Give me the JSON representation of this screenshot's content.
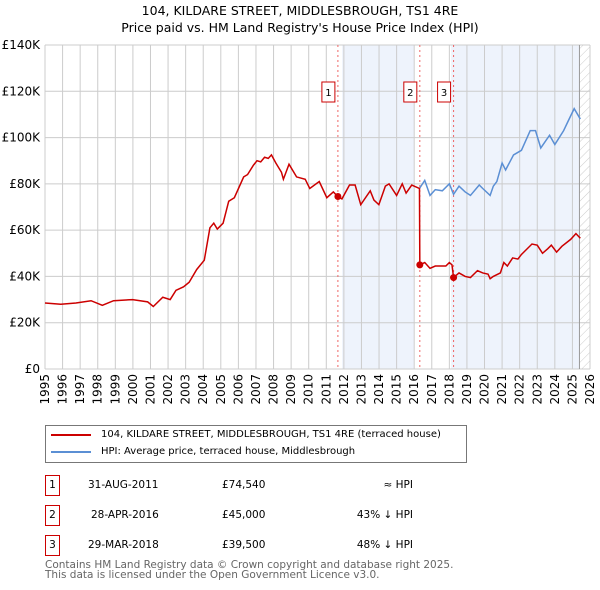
{
  "chart_data": {
    "type": "line",
    "title": "104, KILDARE STREET, MIDDLESBROUGH, TS1 4RE",
    "subtitle": "Price paid vs. HM Land Registry's House Price Index (HPI)",
    "xlim": [
      1995,
      2026
    ],
    "ylim": [
      0,
      140000
    ],
    "x_ticks": [
      "1995",
      "1996",
      "1997",
      "1998",
      "1999",
      "2000",
      "2001",
      "2002",
      "2003",
      "2004",
      "2005",
      "2006",
      "2007",
      "2008",
      "2009",
      "2010",
      "2011",
      "2012",
      "2013",
      "2014",
      "2015",
      "2016",
      "2017",
      "2018",
      "2019",
      "2020",
      "2021",
      "2022",
      "2023",
      "2024",
      "2025",
      "2026"
    ],
    "y_ticks": [
      {
        "v": 0,
        "label": "£0"
      },
      {
        "v": 20000,
        "label": "£20K"
      },
      {
        "v": 40000,
        "label": "£40K"
      },
      {
        "v": 60000,
        "label": "£60K"
      },
      {
        "v": 80000,
        "label": "£80K"
      },
      {
        "v": 100000,
        "label": "£100K"
      },
      {
        "v": 120000,
        "label": "£120K"
      },
      {
        "v": 140000,
        "label": "£140K"
      }
    ],
    "grid": true,
    "series": [
      {
        "name": "104, KILDARE STREET, MIDDLESBROUGH, TS1 4RE (terraced house)",
        "color": "#cc0000",
        "points": [
          [
            1995,
            28500
          ],
          [
            1995.9,
            28000
          ],
          [
            1996.76,
            28500
          ],
          [
            1997.62,
            29500
          ],
          [
            1998.26,
            27500
          ],
          [
            1998.9,
            29500
          ],
          [
            1999.98,
            30000
          ],
          [
            2000.84,
            29000
          ],
          [
            2001.16,
            27000
          ],
          [
            2001.7,
            31000
          ],
          [
            2002.12,
            30000
          ],
          [
            2002.45,
            34000
          ],
          [
            2002.88,
            35500
          ],
          [
            2003.2,
            37500
          ],
          [
            2003.63,
            43000
          ],
          [
            2004.06,
            47000
          ],
          [
            2004.38,
            61000
          ],
          [
            2004.6,
            63000
          ],
          [
            2004.8,
            60500
          ],
          [
            2005.13,
            63000
          ],
          [
            2005.45,
            72500
          ],
          [
            2005.77,
            74000
          ],
          [
            2006.3,
            83000
          ],
          [
            2006.52,
            84000
          ],
          [
            2006.85,
            88000
          ],
          [
            2007.06,
            90000
          ],
          [
            2007.27,
            89500
          ],
          [
            2007.49,
            91500
          ],
          [
            2007.7,
            91000
          ],
          [
            2007.88,
            92500
          ],
          [
            2008.13,
            89000
          ],
          [
            2008.45,
            85000
          ],
          [
            2008.56,
            82000
          ],
          [
            2008.88,
            88500
          ],
          [
            2009.31,
            83000
          ],
          [
            2009.8,
            82000
          ],
          [
            2010.06,
            78000
          ],
          [
            2010.6,
            81000
          ],
          [
            2011.03,
            74000
          ],
          [
            2011.4,
            76500
          ],
          [
            2011.66,
            74540
          ],
          [
            2011.89,
            73500
          ],
          [
            2012.32,
            79500
          ],
          [
            2012.64,
            79500
          ],
          [
            2012.96,
            71000
          ],
          [
            2013.5,
            77000
          ],
          [
            2013.71,
            73000
          ],
          [
            2013.99,
            71000
          ],
          [
            2014.36,
            79000
          ],
          [
            2014.57,
            80000
          ],
          [
            2015.0,
            75000
          ],
          [
            2015.32,
            80000
          ],
          [
            2015.54,
            76000
          ],
          [
            2015.86,
            79500
          ],
          [
            2016.3,
            78000
          ],
          [
            2016.32,
            45000
          ],
          [
            2016.6,
            46000
          ],
          [
            2016.9,
            43500
          ],
          [
            2017.2,
            44500
          ],
          [
            2017.8,
            44500
          ],
          [
            2018.0,
            46000
          ],
          [
            2018.15,
            45000
          ],
          [
            2018.24,
            39500
          ],
          [
            2018.55,
            41500
          ],
          [
            2018.9,
            40000
          ],
          [
            2019.2,
            39500
          ],
          [
            2019.6,
            42500
          ],
          [
            2019.9,
            41500
          ],
          [
            2020.2,
            41000
          ],
          [
            2020.32,
            39000
          ],
          [
            2020.5,
            40000
          ],
          [
            2020.9,
            41500
          ],
          [
            2021.1,
            46000
          ],
          [
            2021.3,
            44500
          ],
          [
            2021.6,
            48000
          ],
          [
            2021.9,
            47500
          ],
          [
            2022.1,
            49500
          ],
          [
            2022.7,
            54000
          ],
          [
            2023.0,
            53500
          ],
          [
            2023.3,
            50000
          ],
          [
            2023.6,
            52000
          ],
          [
            2023.8,
            53500
          ],
          [
            2024.1,
            50500
          ],
          [
            2024.4,
            53000
          ],
          [
            2024.9,
            56000
          ],
          [
            2025.2,
            58500
          ],
          [
            2025.45,
            56500
          ]
        ]
      },
      {
        "name": "HPI: Average price, terraced house, Middlesbrough",
        "color": "#5b8fd4",
        "points": [
          [
            2016.3,
            78000
          ],
          [
            2016.6,
            81500
          ],
          [
            2016.9,
            75000
          ],
          [
            2017.2,
            77500
          ],
          [
            2017.6,
            77000
          ],
          [
            2018.0,
            80000
          ],
          [
            2018.24,
            75500
          ],
          [
            2018.55,
            79000
          ],
          [
            2018.9,
            76500
          ],
          [
            2019.2,
            75000
          ],
          [
            2019.7,
            79500
          ],
          [
            2019.9,
            78000
          ],
          [
            2020.32,
            75000
          ],
          [
            2020.5,
            79000
          ],
          [
            2020.7,
            81000
          ],
          [
            2021.0,
            89000
          ],
          [
            2021.2,
            86000
          ],
          [
            2021.65,
            92500
          ],
          [
            2022.1,
            94500
          ],
          [
            2022.6,
            103000
          ],
          [
            2022.9,
            103000
          ],
          [
            2023.2,
            95500
          ],
          [
            2023.7,
            101000
          ],
          [
            2024.0,
            97000
          ],
          [
            2024.5,
            103000
          ],
          [
            2024.75,
            107000
          ],
          [
            2025.1,
            112500
          ],
          [
            2025.45,
            108000
          ]
        ]
      }
    ],
    "shaded_ranges": [
      [
        2011.9,
        2016.0
      ],
      [
        2018.1,
        2025.4
      ]
    ],
    "hatched_from": 2025.4,
    "markers": [
      {
        "label": "1",
        "x": 2011.66,
        "y": 74540
      },
      {
        "label": "2",
        "x": 2016.32,
        "y": 45000
      },
      {
        "label": "3",
        "x": 2018.24,
        "y": 39500
      }
    ],
    "legend_position": "below"
  },
  "legend": {
    "property": "104, KILDARE STREET, MIDDLESBROUGH, TS1 4RE (terraced house)",
    "hpi": "HPI: Average price, terraced house, Middlesbrough"
  },
  "sales": [
    {
      "num": "1",
      "date": "31-AUG-2011",
      "price": "£74,540",
      "hpi": "≈ HPI"
    },
    {
      "num": "2",
      "date": "28-APR-2016",
      "price": "£45,000",
      "hpi": "43% ↓ HPI"
    },
    {
      "num": "3",
      "date": "29-MAR-2018",
      "price": "£39,500",
      "hpi": "48% ↓ HPI"
    }
  ],
  "footer": {
    "line1": "Contains HM Land Registry data © Crown copyright and database right 2025.",
    "line2": "This data is licensed under the Open Government Licence v3.0."
  }
}
